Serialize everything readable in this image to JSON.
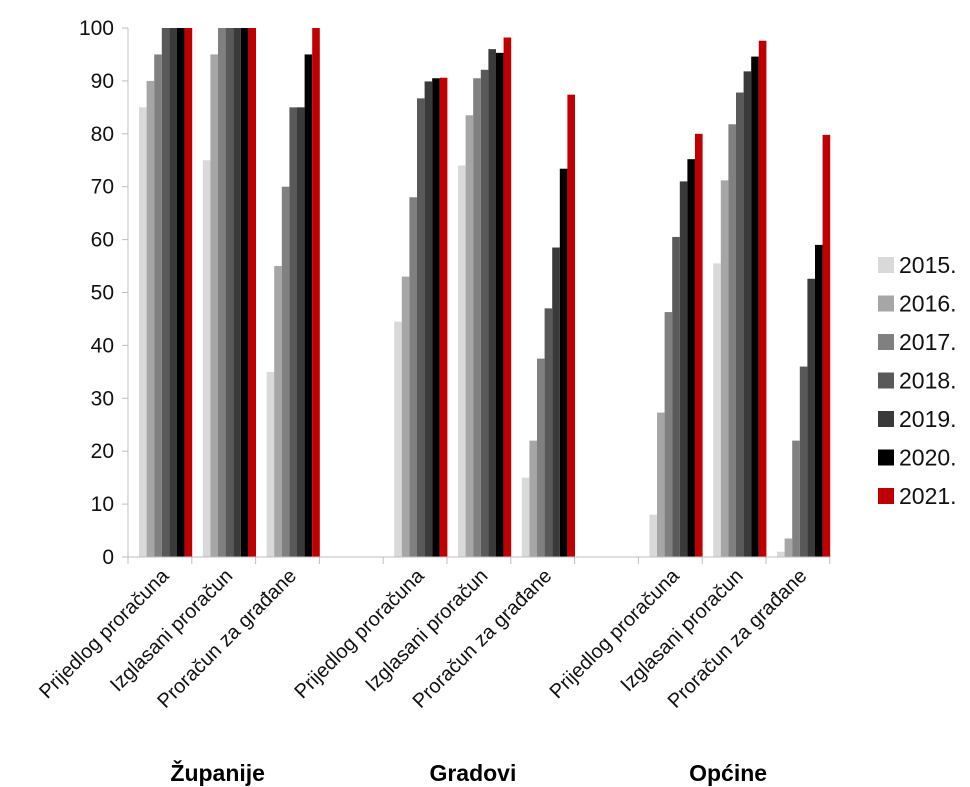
{
  "chart_data": {
    "type": "bar",
    "title": "",
    "xlabel": "",
    "ylabel": "",
    "ylim": [
      0,
      100
    ],
    "yticks": [
      0,
      10,
      20,
      30,
      40,
      50,
      60,
      70,
      80,
      90,
      100
    ],
    "grid": false,
    "legend_position": "right",
    "groups": [
      {
        "label": "Županije",
        "categories": [
          "Prijedlog proračuna",
          "Izglasani proračun",
          "Proračun za građane"
        ]
      },
      {
        "label": "Gradovi",
        "categories": [
          "Prijedlog proračuna",
          "Izglasani proračun",
          "Proračun za građane"
        ]
      },
      {
        "label": "Općine",
        "categories": [
          "Prijedlog proračuna",
          "Izglasani proračun",
          "Proračun za građane"
        ]
      }
    ],
    "series": [
      {
        "name": "2015.",
        "color": "#d9d9d9",
        "values": [
          85,
          75,
          35,
          44.5,
          74,
          15,
          8,
          55.5,
          1
        ]
      },
      {
        "name": "2016.",
        "color": "#a6a6a6",
        "values": [
          90,
          95,
          55,
          53,
          83.5,
          22,
          27.3,
          71.2,
          3.5
        ]
      },
      {
        "name": "2017.",
        "color": "#808080",
        "values": [
          95,
          100,
          70,
          68,
          90.5,
          37.5,
          46.3,
          81.8,
          22
        ]
      },
      {
        "name": "2018.",
        "color": "#595959",
        "values": [
          100,
          100,
          85,
          86.7,
          92.1,
          47,
          60.5,
          87.8,
          36
        ]
      },
      {
        "name": "2019.",
        "color": "#3a3a3a",
        "values": [
          100,
          100,
          85,
          89.9,
          96,
          58.5,
          71,
          91.8,
          52.6
        ]
      },
      {
        "name": "2020.",
        "color": "#000000",
        "values": [
          100,
          100,
          95,
          90.5,
          95.3,
          73.4,
          75.2,
          94.6,
          59
        ]
      },
      {
        "name": "2021.",
        "color": "#c00000",
        "values": [
          100,
          100,
          100,
          90.6,
          98.2,
          87.4,
          80,
          97.6,
          79.8
        ]
      }
    ]
  }
}
